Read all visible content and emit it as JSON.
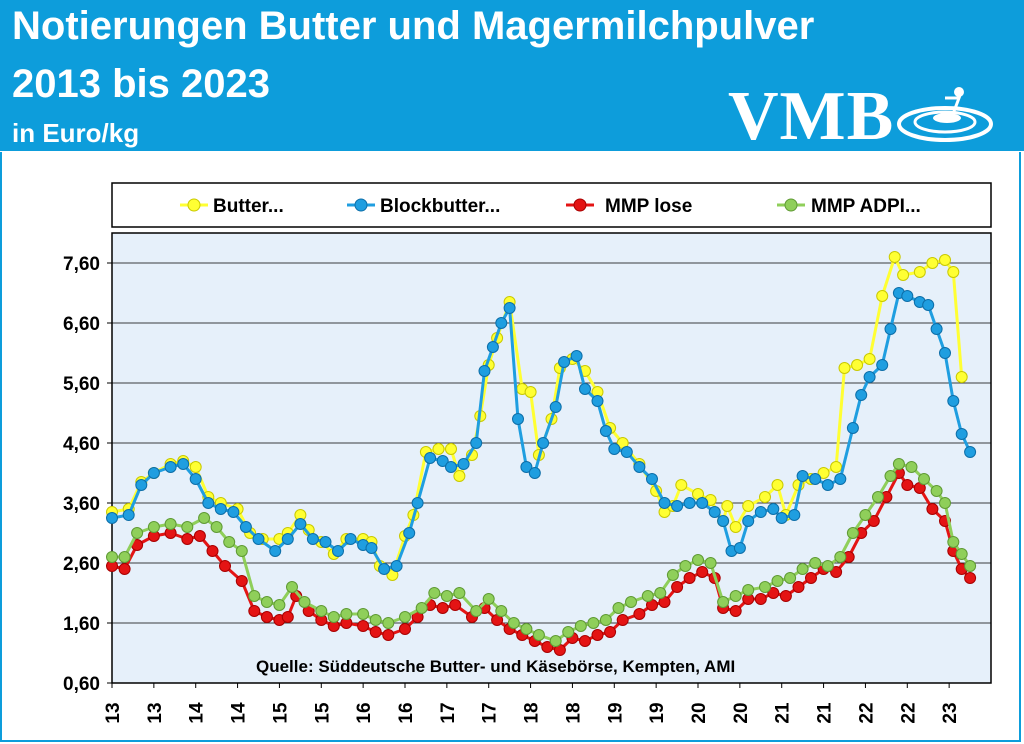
{
  "header": {
    "title_line1": "Notierungen Butter und Magermilchpulver",
    "title_line2": "2013 bis 2023",
    "unit": "in Euro/kg",
    "logo": "VMB"
  },
  "colors": {
    "header_bg": "#0d9ddb",
    "plot_bg": "#e6f0fa",
    "butter": "#ffff33",
    "blockbutter": "#1f9ee0",
    "mmp_lose": "#e41414",
    "mmp_adpi": "#8fcf5a"
  },
  "chart_data": {
    "type": "line",
    "title": "Notierungen Butter und Magermilchpulver 2013 bis 2023",
    "ylabel": "in Euro/kg",
    "source": "Quelle: Süddeutsche Butter- und Käsebörse, Kempten, AMI",
    "ylim": [
      0.6,
      8.1
    ],
    "xlim": [
      2013.0,
      2023.5
    ],
    "yticks": [
      "0,60",
      "1,60",
      "2,60",
      "3,60",
      "4,60",
      "5,60",
      "6,60",
      "7,60"
    ],
    "ytick_values": [
      0.6,
      1.6,
      2.6,
      3.6,
      4.6,
      5.6,
      6.6,
      7.6
    ],
    "xticks": [
      "13",
      "13",
      "14",
      "14",
      "15",
      "15",
      "16",
      "16",
      "17",
      "17",
      "18",
      "18",
      "19",
      "19",
      "20",
      "20",
      "21",
      "21",
      "22",
      "22",
      "23"
    ],
    "xtick_values": [
      2013.0,
      2013.5,
      2014.0,
      2014.5,
      2015.0,
      2015.5,
      2016.0,
      2016.5,
      2017.0,
      2017.5,
      2018.0,
      2018.5,
      2019.0,
      2019.5,
      2020.0,
      2020.5,
      2021.0,
      2021.5,
      2022.0,
      2022.5,
      2023.0
    ],
    "grid": true,
    "legend": "top",
    "series": [
      {
        "name": "Butter...",
        "color": "#ffff33",
        "points": [
          [
            2013.0,
            3.45
          ],
          [
            2013.2,
            3.5
          ],
          [
            2013.35,
            3.95
          ],
          [
            2013.5,
            4.1
          ],
          [
            2013.7,
            4.25
          ],
          [
            2013.85,
            4.3
          ],
          [
            2014.0,
            4.2
          ],
          [
            2014.15,
            3.7
          ],
          [
            2014.3,
            3.6
          ],
          [
            2014.5,
            3.5
          ],
          [
            2014.65,
            3.1
          ],
          [
            2014.8,
            3.0
          ],
          [
            2015.0,
            3.0
          ],
          [
            2015.1,
            3.1
          ],
          [
            2015.25,
            3.4
          ],
          [
            2015.35,
            3.15
          ],
          [
            2015.5,
            2.95
          ],
          [
            2015.65,
            2.75
          ],
          [
            2015.8,
            3.0
          ],
          [
            2016.0,
            3.0
          ],
          [
            2016.1,
            2.95
          ],
          [
            2016.2,
            2.55
          ],
          [
            2016.35,
            2.4
          ],
          [
            2016.5,
            3.05
          ],
          [
            2016.6,
            3.4
          ],
          [
            2016.75,
            4.45
          ],
          [
            2016.9,
            4.5
          ],
          [
            2017.05,
            4.5
          ],
          [
            2017.15,
            4.05
          ],
          [
            2017.3,
            4.4
          ],
          [
            2017.4,
            5.05
          ],
          [
            2017.5,
            5.9
          ],
          [
            2017.6,
            6.35
          ],
          [
            2017.75,
            6.95
          ],
          [
            2017.9,
            5.5
          ],
          [
            2018.0,
            5.45
          ],
          [
            2018.1,
            4.4
          ],
          [
            2018.25,
            5.0
          ],
          [
            2018.35,
            5.85
          ],
          [
            2018.5,
            6.0
          ],
          [
            2018.65,
            5.8
          ],
          [
            2018.8,
            5.45
          ],
          [
            2018.95,
            4.85
          ],
          [
            2019.1,
            4.6
          ],
          [
            2019.3,
            4.25
          ],
          [
            2019.5,
            3.8
          ],
          [
            2019.6,
            3.45
          ],
          [
            2019.7,
            3.55
          ],
          [
            2019.8,
            3.9
          ],
          [
            2020.0,
            3.75
          ],
          [
            2020.15,
            3.65
          ],
          [
            2020.3,
            3.3
          ],
          [
            2020.35,
            3.55
          ],
          [
            2020.45,
            3.2
          ],
          [
            2020.6,
            3.55
          ],
          [
            2020.8,
            3.7
          ],
          [
            2020.95,
            3.9
          ],
          [
            2021.05,
            3.4
          ],
          [
            2021.2,
            3.9
          ],
          [
            2021.35,
            4.0
          ],
          [
            2021.5,
            4.1
          ],
          [
            2021.65,
            4.2
          ],
          [
            2021.75,
            5.85
          ],
          [
            2021.9,
            5.9
          ],
          [
            2022.05,
            6.0
          ],
          [
            2022.2,
            7.05
          ],
          [
            2022.35,
            7.7
          ],
          [
            2022.45,
            7.4
          ],
          [
            2022.65,
            7.45
          ],
          [
            2022.8,
            7.6
          ],
          [
            2022.95,
            7.65
          ],
          [
            2023.05,
            7.45
          ],
          [
            2023.15,
            5.7
          ]
        ]
      },
      {
        "name": "Blockbutter...",
        "color": "#1f9ee0",
        "points": [
          [
            2013.0,
            3.35
          ],
          [
            2013.2,
            3.4
          ],
          [
            2013.35,
            3.9
          ],
          [
            2013.5,
            4.1
          ],
          [
            2013.7,
            4.2
          ],
          [
            2013.85,
            4.25
          ],
          [
            2014.0,
            4.0
          ],
          [
            2014.15,
            3.6
          ],
          [
            2014.3,
            3.5
          ],
          [
            2014.45,
            3.45
          ],
          [
            2014.6,
            3.2
          ],
          [
            2014.75,
            3.0
          ],
          [
            2014.95,
            2.8
          ],
          [
            2015.1,
            3.0
          ],
          [
            2015.25,
            3.25
          ],
          [
            2015.4,
            3.0
          ],
          [
            2015.55,
            2.95
          ],
          [
            2015.7,
            2.8
          ],
          [
            2015.85,
            3.0
          ],
          [
            2016.0,
            2.9
          ],
          [
            2016.1,
            2.85
          ],
          [
            2016.25,
            2.5
          ],
          [
            2016.4,
            2.55
          ],
          [
            2016.55,
            3.1
          ],
          [
            2016.65,
            3.6
          ],
          [
            2016.8,
            4.35
          ],
          [
            2016.95,
            4.3
          ],
          [
            2017.05,
            4.2
          ],
          [
            2017.2,
            4.25
          ],
          [
            2017.35,
            4.6
          ],
          [
            2017.45,
            5.8
          ],
          [
            2017.55,
            6.2
          ],
          [
            2017.65,
            6.6
          ],
          [
            2017.75,
            6.85
          ],
          [
            2017.85,
            5.0
          ],
          [
            2017.95,
            4.2
          ],
          [
            2018.05,
            4.1
          ],
          [
            2018.15,
            4.6
          ],
          [
            2018.3,
            5.2
          ],
          [
            2018.4,
            5.95
          ],
          [
            2018.55,
            6.05
          ],
          [
            2018.65,
            5.5
          ],
          [
            2018.8,
            5.3
          ],
          [
            2018.9,
            4.8
          ],
          [
            2019.0,
            4.5
          ],
          [
            2019.15,
            4.45
          ],
          [
            2019.3,
            4.2
          ],
          [
            2019.45,
            4.0
          ],
          [
            2019.6,
            3.6
          ],
          [
            2019.75,
            3.55
          ],
          [
            2019.9,
            3.6
          ],
          [
            2020.05,
            3.6
          ],
          [
            2020.2,
            3.45
          ],
          [
            2020.3,
            3.3
          ],
          [
            2020.4,
            2.8
          ],
          [
            2020.5,
            2.85
          ],
          [
            2020.6,
            3.3
          ],
          [
            2020.75,
            3.45
          ],
          [
            2020.9,
            3.5
          ],
          [
            2021.0,
            3.35
          ],
          [
            2021.15,
            3.4
          ],
          [
            2021.25,
            4.05
          ],
          [
            2021.4,
            4.0
          ],
          [
            2021.55,
            3.9
          ],
          [
            2021.7,
            4.0
          ],
          [
            2021.85,
            4.85
          ],
          [
            2021.95,
            5.4
          ],
          [
            2022.05,
            5.7
          ],
          [
            2022.2,
            5.9
          ],
          [
            2022.3,
            6.5
          ],
          [
            2022.4,
            7.1
          ],
          [
            2022.5,
            7.05
          ],
          [
            2022.65,
            6.95
          ],
          [
            2022.75,
            6.9
          ],
          [
            2022.85,
            6.5
          ],
          [
            2022.95,
            6.1
          ],
          [
            2023.05,
            5.3
          ],
          [
            2023.15,
            4.75
          ],
          [
            2023.25,
            4.45
          ]
        ]
      },
      {
        "name": "MMP lose",
        "color": "#e41414",
        "points": [
          [
            2013.0,
            2.55
          ],
          [
            2013.15,
            2.5
          ],
          [
            2013.3,
            2.9
          ],
          [
            2013.5,
            3.05
          ],
          [
            2013.7,
            3.1
          ],
          [
            2013.9,
            3.0
          ],
          [
            2014.05,
            3.05
          ],
          [
            2014.2,
            2.8
          ],
          [
            2014.35,
            2.55
          ],
          [
            2014.55,
            2.3
          ],
          [
            2014.7,
            1.8
          ],
          [
            2014.85,
            1.7
          ],
          [
            2015.0,
            1.65
          ],
          [
            2015.1,
            1.7
          ],
          [
            2015.2,
            2.05
          ],
          [
            2015.35,
            1.8
          ],
          [
            2015.5,
            1.65
          ],
          [
            2015.65,
            1.55
          ],
          [
            2015.8,
            1.6
          ],
          [
            2016.0,
            1.55
          ],
          [
            2016.15,
            1.45
          ],
          [
            2016.3,
            1.4
          ],
          [
            2016.5,
            1.5
          ],
          [
            2016.65,
            1.7
          ],
          [
            2016.8,
            1.9
          ],
          [
            2016.95,
            1.85
          ],
          [
            2017.1,
            1.9
          ],
          [
            2017.3,
            1.7
          ],
          [
            2017.45,
            1.85
          ],
          [
            2017.6,
            1.65
          ],
          [
            2017.75,
            1.5
          ],
          [
            2017.9,
            1.4
          ],
          [
            2018.05,
            1.3
          ],
          [
            2018.2,
            1.2
          ],
          [
            2018.35,
            1.15
          ],
          [
            2018.5,
            1.35
          ],
          [
            2018.65,
            1.3
          ],
          [
            2018.8,
            1.4
          ],
          [
            2018.95,
            1.45
          ],
          [
            2019.1,
            1.65
          ],
          [
            2019.3,
            1.75
          ],
          [
            2019.45,
            1.9
          ],
          [
            2019.6,
            1.95
          ],
          [
            2019.75,
            2.2
          ],
          [
            2019.9,
            2.35
          ],
          [
            2020.05,
            2.45
          ],
          [
            2020.2,
            2.35
          ],
          [
            2020.3,
            1.85
          ],
          [
            2020.45,
            1.8
          ],
          [
            2020.6,
            2.0
          ],
          [
            2020.75,
            2.0
          ],
          [
            2020.9,
            2.1
          ],
          [
            2021.05,
            2.05
          ],
          [
            2021.2,
            2.2
          ],
          [
            2021.35,
            2.35
          ],
          [
            2021.5,
            2.5
          ],
          [
            2021.65,
            2.45
          ],
          [
            2021.8,
            2.7
          ],
          [
            2021.95,
            3.1
          ],
          [
            2022.1,
            3.3
          ],
          [
            2022.25,
            3.7
          ],
          [
            2022.4,
            4.1
          ],
          [
            2022.5,
            3.9
          ],
          [
            2022.65,
            3.85
          ],
          [
            2022.8,
            3.5
          ],
          [
            2022.95,
            3.3
          ],
          [
            2023.05,
            2.8
          ],
          [
            2023.15,
            2.5
          ],
          [
            2023.25,
            2.35
          ]
        ]
      },
      {
        "name": "MMP ADPI...",
        "color": "#8fcf5a",
        "points": [
          [
            2013.0,
            2.7
          ],
          [
            2013.15,
            2.7
          ],
          [
            2013.3,
            3.1
          ],
          [
            2013.5,
            3.2
          ],
          [
            2013.7,
            3.25
          ],
          [
            2013.9,
            3.2
          ],
          [
            2014.1,
            3.35
          ],
          [
            2014.25,
            3.2
          ],
          [
            2014.4,
            2.95
          ],
          [
            2014.55,
            2.8
          ],
          [
            2014.7,
            2.05
          ],
          [
            2014.85,
            1.95
          ],
          [
            2015.0,
            1.9
          ],
          [
            2015.15,
            2.2
          ],
          [
            2015.3,
            1.95
          ],
          [
            2015.5,
            1.8
          ],
          [
            2015.65,
            1.7
          ],
          [
            2015.8,
            1.75
          ],
          [
            2016.0,
            1.75
          ],
          [
            2016.15,
            1.65
          ],
          [
            2016.3,
            1.6
          ],
          [
            2016.5,
            1.7
          ],
          [
            2016.7,
            1.85
          ],
          [
            2016.85,
            2.1
          ],
          [
            2017.0,
            2.05
          ],
          [
            2017.15,
            2.1
          ],
          [
            2017.35,
            1.8
          ],
          [
            2017.5,
            2.0
          ],
          [
            2017.65,
            1.8
          ],
          [
            2017.8,
            1.6
          ],
          [
            2017.95,
            1.5
          ],
          [
            2018.1,
            1.4
          ],
          [
            2018.3,
            1.3
          ],
          [
            2018.45,
            1.45
          ],
          [
            2018.6,
            1.55
          ],
          [
            2018.75,
            1.6
          ],
          [
            2018.9,
            1.65
          ],
          [
            2019.05,
            1.85
          ],
          [
            2019.2,
            1.95
          ],
          [
            2019.4,
            2.05
          ],
          [
            2019.55,
            2.1
          ],
          [
            2019.7,
            2.4
          ],
          [
            2019.85,
            2.55
          ],
          [
            2020.0,
            2.65
          ],
          [
            2020.15,
            2.6
          ],
          [
            2020.3,
            1.95
          ],
          [
            2020.45,
            2.05
          ],
          [
            2020.6,
            2.15
          ],
          [
            2020.8,
            2.2
          ],
          [
            2020.95,
            2.3
          ],
          [
            2021.1,
            2.35
          ],
          [
            2021.25,
            2.5
          ],
          [
            2021.4,
            2.6
          ],
          [
            2021.55,
            2.55
          ],
          [
            2021.7,
            2.7
          ],
          [
            2021.85,
            3.1
          ],
          [
            2022.0,
            3.4
          ],
          [
            2022.15,
            3.7
          ],
          [
            2022.3,
            4.05
          ],
          [
            2022.4,
            4.25
          ],
          [
            2022.55,
            4.2
          ],
          [
            2022.7,
            4.0
          ],
          [
            2022.85,
            3.8
          ],
          [
            2022.95,
            3.6
          ],
          [
            2023.05,
            2.95
          ],
          [
            2023.15,
            2.75
          ],
          [
            2023.25,
            2.55
          ]
        ]
      }
    ]
  }
}
